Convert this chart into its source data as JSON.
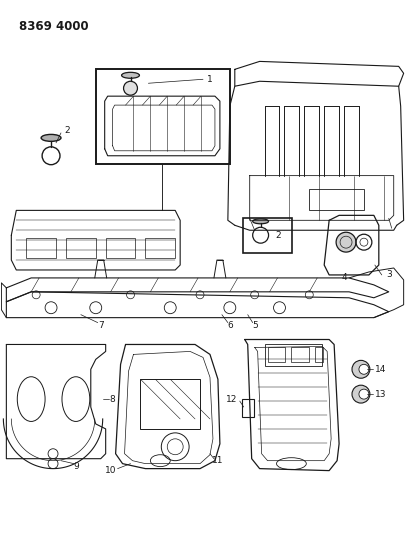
{
  "title": "8369 4000",
  "bg_color": "#ffffff",
  "line_color": "#1a1a1a",
  "fig_width": 4.1,
  "fig_height": 5.33,
  "dpi": 100,
  "label_fontsize": 6.5,
  "title_fontsize": 8.5,
  "title_fontweight": "bold"
}
